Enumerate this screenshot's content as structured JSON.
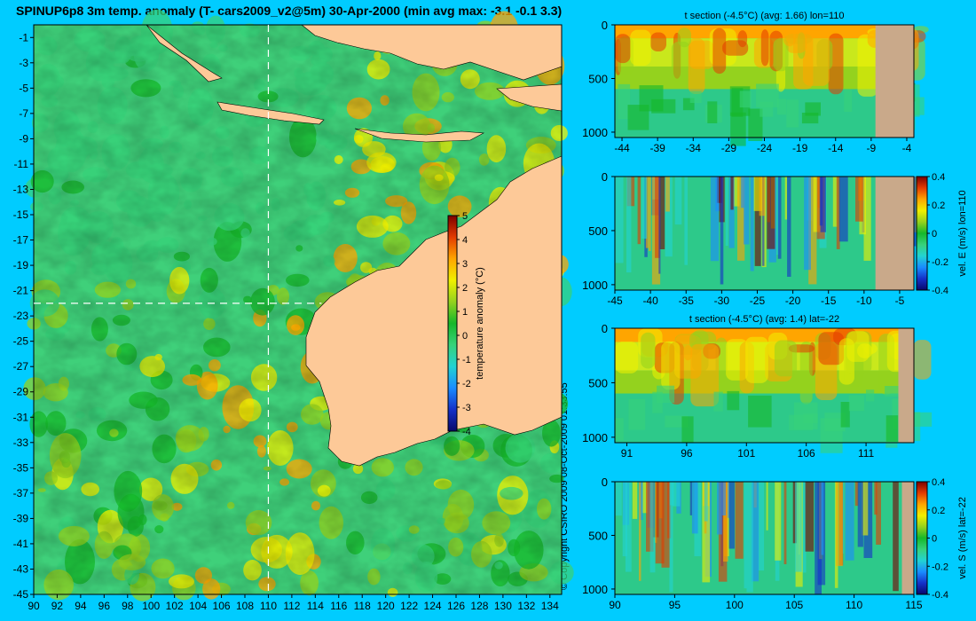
{
  "header": {
    "title": "SPINUP6p8 3m temp. anomaly (T- cars2009_v2@5m) 30-Apr-2000 (min avg max: -3.1 -0.1 3.3)"
  },
  "copyright": "© Copyright CSIRO 2009   08-Oct-2009 01:33:55",
  "colors": {
    "background": "#00ccff",
    "land": "#fdc998",
    "bottom": "#c9a98a",
    "colormap": [
      "#08086b",
      "#1430c8",
      "#1a8cff",
      "#22d3d3",
      "#37d27a",
      "#15b82a",
      "#94d21e",
      "#f0f000",
      "#ffa500",
      "#e33b00",
      "#7a0000"
    ]
  },
  "chart_data": [
    {
      "type": "heatmap",
      "id": "map",
      "title": "",
      "xlim": [
        90,
        135
      ],
      "ylim": [
        -45,
        0
      ],
      "x_ticks": [
        "90",
        "92",
        "94",
        "96",
        "98",
        "100",
        "102",
        "104",
        "106",
        "108",
        "110",
        "112",
        "114",
        "116",
        "118",
        "120",
        "122",
        "124",
        "126",
        "128",
        "130",
        "132",
        "134"
      ],
      "y_ticks": [
        "-1",
        "-3",
        "-5",
        "-7",
        "-9",
        "-11",
        "-13",
        "-15",
        "-17",
        "-19",
        "-21",
        "-23",
        "-25",
        "-27",
        "-29",
        "-31",
        "-33",
        "-35",
        "-37",
        "-39",
        "-41",
        "-43",
        "-45"
      ],
      "section_lines": {
        "lon": 110,
        "lat": -22
      },
      "colorbar": {
        "label": "temperature anomaly (°C)",
        "range": [
          -4,
          5
        ],
        "ticks": [
          "5",
          "4",
          "3",
          "2",
          "1",
          "0",
          "-1",
          "-2",
          "-3",
          "-4"
        ]
      }
    },
    {
      "type": "heatmap",
      "id": "panel1",
      "title": "t section (-4.5°C) (avg: 1.66) lon=110",
      "xlim": [
        -45,
        -3
      ],
      "ylim": [
        1050,
        0
      ],
      "x_ticks": [
        "-44",
        "-39",
        "-34",
        "-29",
        "-24",
        "-19",
        "-14",
        "-9",
        "-4"
      ],
      "y_ticks": [
        "0",
        "500",
        "1000"
      ]
    },
    {
      "type": "heatmap",
      "id": "panel2",
      "title": "",
      "xlim": [
        -45,
        -3
      ],
      "ylim": [
        1050,
        0
      ],
      "x_ticks": [
        "-45",
        "-40",
        "-35",
        "-30",
        "-25",
        "-20",
        "-15",
        "-10",
        "-5"
      ],
      "y_ticks": [
        "0",
        "500",
        "1000"
      ],
      "colorbar": {
        "label": "vel. E (m/s) lon=110",
        "range": [
          -0.4,
          0.4
        ],
        "ticks": [
          "0.4",
          "0.2",
          "0",
          "-0.2",
          "-0.4"
        ]
      }
    },
    {
      "type": "heatmap",
      "id": "panel3",
      "title": "t section (-4.5°C) (avg: 1.4) lat=-22",
      "xlim": [
        90,
        115
      ],
      "ylim": [
        1050,
        0
      ],
      "x_ticks": [
        "91",
        "96",
        "101",
        "106",
        "111"
      ],
      "y_ticks": [
        "0",
        "500",
        "1000"
      ]
    },
    {
      "type": "heatmap",
      "id": "panel4",
      "title": "",
      "xlim": [
        90,
        115
      ],
      "ylim": [
        1050,
        0
      ],
      "x_ticks": [
        "90",
        "95",
        "100",
        "105",
        "110",
        "115"
      ],
      "y_ticks": [
        "0",
        "500",
        "1000"
      ],
      "colorbar": {
        "label": "vel. S (m/s) lat=-22",
        "range": [
          -0.4,
          0.4
        ],
        "ticks": [
          "0.4",
          "0.2",
          "0",
          "-0.2",
          "-0.4"
        ]
      }
    }
  ]
}
